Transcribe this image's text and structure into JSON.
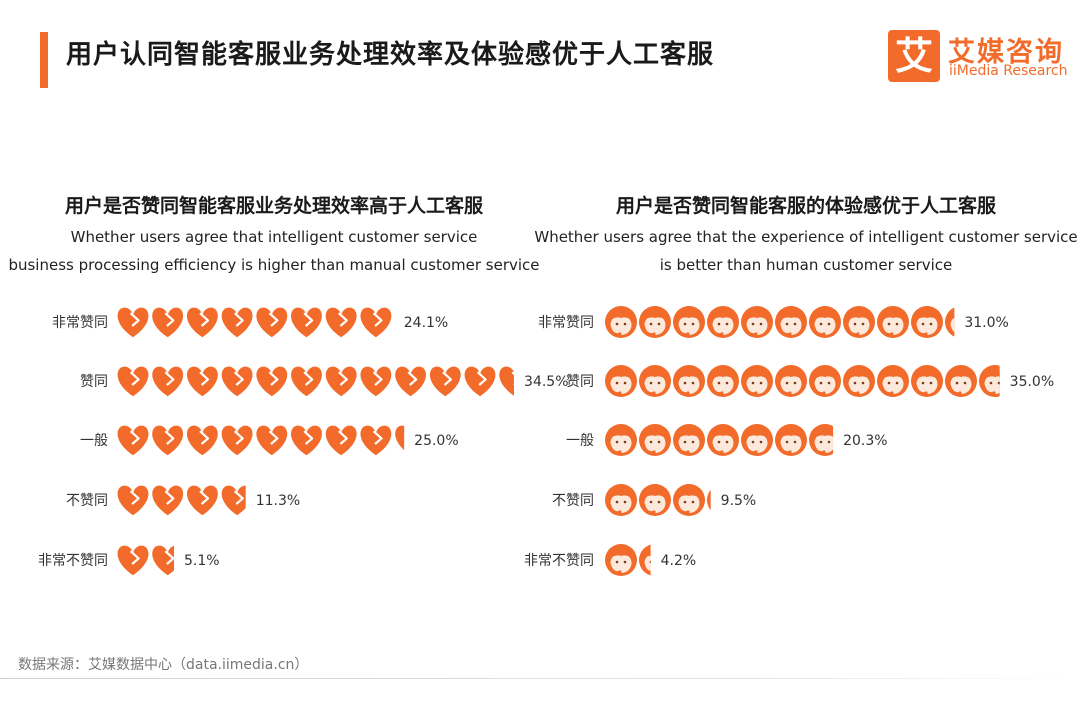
{
  "header": {
    "title": "用户认同智能客服业务处理效率及体验感优于人工客服",
    "logo_char": "艾",
    "logo_cn": "艾媒咨询",
    "logo_en": "iiMedia Research"
  },
  "chart_data": [
    {
      "type": "bar",
      "title": "用户是否赞同智能客服业务处理效率高于人工客服",
      "subtitle": [
        "Whether users agree that intelligent customer service",
        "business processing efficiency is higher than manual customer service"
      ],
      "icon": "heart-icon",
      "categories": [
        "非常赞同",
        "赞同",
        "一般",
        "不赞同",
        "非常不赞同"
      ],
      "values": [
        24.1,
        34.5,
        25.0,
        11.3,
        5.1
      ],
      "value_labels": [
        "24.1%",
        "34.5%",
        "25.0%",
        "11.3%",
        "5.1%"
      ],
      "unit": "%",
      "color": "#f26b2a"
    },
    {
      "type": "bar",
      "title": "用户是否赞同智能客服的体验感优于人工客服",
      "subtitle": [
        "Whether users agree that the experience of intelligent customer service",
        "is better than  human customer service"
      ],
      "icon": "agent-face-icon",
      "categories": [
        "非常赞同",
        "赞同",
        "一般",
        "不赞同",
        "非常不赞同"
      ],
      "values": [
        31.0,
        35.0,
        20.3,
        9.5,
        4.2
      ],
      "value_labels": [
        "31.0%",
        "35.0%",
        "20.3%",
        "9.5%",
        "4.2%"
      ],
      "unit": "%",
      "color": "#f26b2a"
    }
  ],
  "footer": {
    "source": "数据来源：艾媒数据中心（data.iimedia.cn）"
  }
}
